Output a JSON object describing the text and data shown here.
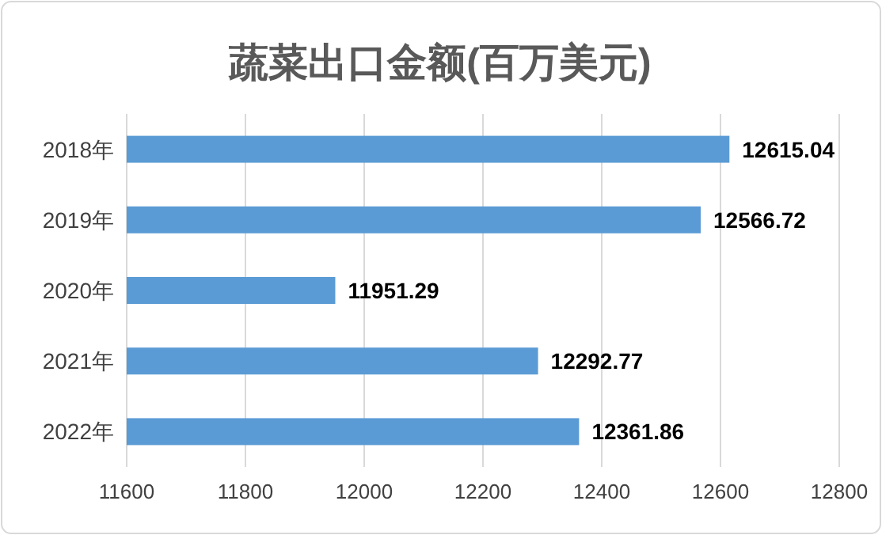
{
  "chart_data": {
    "type": "bar",
    "orientation": "horizontal",
    "title": "蔬菜出口金额(百万美元)",
    "categories": [
      "2018年",
      "2019年",
      "2020年",
      "2021年",
      "2022年"
    ],
    "values": [
      12615.04,
      12566.72,
      11951.29,
      12292.77,
      12361.86
    ],
    "color": "#5b9bd5",
    "data_labels": true,
    "grid": "x",
    "xlim": [
      11600,
      12800
    ],
    "xticks": [
      11600,
      11800,
      12000,
      12200,
      12400,
      12600,
      12800
    ]
  }
}
